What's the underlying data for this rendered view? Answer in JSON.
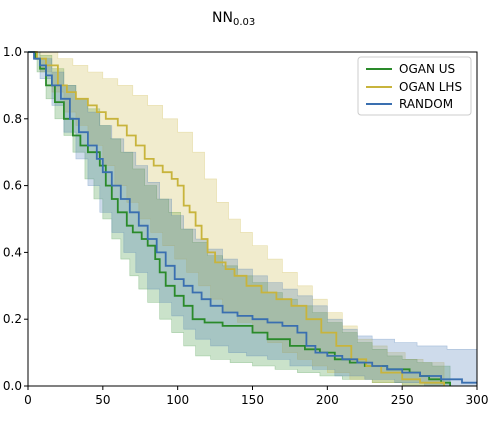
{
  "chart_data": {
    "type": "line",
    "title": "NN",
    "title_subscript": "0.03",
    "xlabel": "",
    "ylabel": "",
    "xlim": [
      0,
      300
    ],
    "ylim": [
      0,
      1.0
    ],
    "xticks": [
      0,
      50,
      100,
      150,
      200,
      250,
      300
    ],
    "yticks": [
      0.0,
      0.2,
      0.4,
      0.6,
      0.8,
      1.0
    ],
    "xtick_labels": [
      "0",
      "50",
      "100",
      "150",
      "200",
      "250",
      "300"
    ],
    "ytick_labels": [
      "0.0",
      "0.2",
      "0.4",
      "0.6",
      "0.8",
      "1.0"
    ],
    "grid": false,
    "legend_position": "top-right",
    "series": [
      {
        "name": "OGAN US",
        "color": "#2a8a2a",
        "step": [
          [
            0,
            1.0
          ],
          [
            5,
            0.98
          ],
          [
            8,
            0.95
          ],
          [
            12,
            0.9
          ],
          [
            18,
            0.85
          ],
          [
            24,
            0.8
          ],
          [
            30,
            0.75
          ],
          [
            35,
            0.72
          ],
          [
            40,
            0.7
          ],
          [
            48,
            0.66
          ],
          [
            52,
            0.6
          ],
          [
            56,
            0.56
          ],
          [
            60,
            0.52
          ],
          [
            66,
            0.48
          ],
          [
            70,
            0.46
          ],
          [
            76,
            0.44
          ],
          [
            80,
            0.42
          ],
          [
            85,
            0.38
          ],
          [
            88,
            0.34
          ],
          [
            92,
            0.3
          ],
          [
            98,
            0.27
          ],
          [
            104,
            0.24
          ],
          [
            110,
            0.2
          ],
          [
            118,
            0.19
          ],
          [
            130,
            0.18
          ],
          [
            150,
            0.16
          ],
          [
            160,
            0.14
          ],
          [
            175,
            0.12
          ],
          [
            185,
            0.11
          ],
          [
            195,
            0.1
          ],
          [
            205,
            0.08
          ],
          [
            215,
            0.07
          ],
          [
            225,
            0.06
          ],
          [
            240,
            0.05
          ],
          [
            255,
            0.04
          ],
          [
            262,
            0.03
          ],
          [
            268,
            0.02
          ],
          [
            276,
            0.01
          ],
          [
            282,
            0.0
          ]
        ],
        "band_upper": [
          [
            0,
            1.0
          ],
          [
            8,
            0.99
          ],
          [
            16,
            0.95
          ],
          [
            24,
            0.9
          ],
          [
            32,
            0.86
          ],
          [
            40,
            0.83
          ],
          [
            48,
            0.78
          ],
          [
            55,
            0.74
          ],
          [
            62,
            0.7
          ],
          [
            70,
            0.65
          ],
          [
            78,
            0.6
          ],
          [
            86,
            0.56
          ],
          [
            94,
            0.52
          ],
          [
            102,
            0.47
          ],
          [
            110,
            0.43
          ],
          [
            120,
            0.39
          ],
          [
            130,
            0.36
          ],
          [
            140,
            0.33
          ],
          [
            150,
            0.31
          ],
          [
            160,
            0.28
          ],
          [
            170,
            0.26
          ],
          [
            180,
            0.24
          ],
          [
            190,
            0.22
          ],
          [
            200,
            0.19
          ],
          [
            210,
            0.16
          ],
          [
            220,
            0.13
          ],
          [
            230,
            0.11
          ],
          [
            240,
            0.09
          ],
          [
            250,
            0.08
          ],
          [
            260,
            0.07
          ],
          [
            270,
            0.06
          ],
          [
            282,
            0.05
          ]
        ],
        "band_lower": [
          [
            0,
            1.0
          ],
          [
            6,
            0.94
          ],
          [
            12,
            0.86
          ],
          [
            18,
            0.8
          ],
          [
            24,
            0.75
          ],
          [
            30,
            0.7
          ],
          [
            38,
            0.62
          ],
          [
            44,
            0.56
          ],
          [
            50,
            0.5
          ],
          [
            56,
            0.44
          ],
          [
            62,
            0.38
          ],
          [
            68,
            0.33
          ],
          [
            74,
            0.29
          ],
          [
            80,
            0.25
          ],
          [
            88,
            0.2
          ],
          [
            96,
            0.16
          ],
          [
            104,
            0.12
          ],
          [
            112,
            0.09
          ],
          [
            122,
            0.08
          ],
          [
            135,
            0.07
          ],
          [
            150,
            0.06
          ],
          [
            165,
            0.05
          ],
          [
            180,
            0.04
          ],
          [
            195,
            0.03
          ],
          [
            210,
            0.02
          ],
          [
            230,
            0.01
          ],
          [
            250,
            0.0
          ],
          [
            282,
            0.0
          ]
        ]
      },
      {
        "name": "OGAN LHS",
        "color": "#c8b43c",
        "step": [
          [
            0,
            1.0
          ],
          [
            6,
            0.98
          ],
          [
            12,
            0.96
          ],
          [
            20,
            0.9
          ],
          [
            26,
            0.88
          ],
          [
            32,
            0.86
          ],
          [
            40,
            0.84
          ],
          [
            46,
            0.82
          ],
          [
            52,
            0.8
          ],
          [
            60,
            0.78
          ],
          [
            66,
            0.75
          ],
          [
            72,
            0.72
          ],
          [
            78,
            0.68
          ],
          [
            84,
            0.66
          ],
          [
            90,
            0.64
          ],
          [
            96,
            0.62
          ],
          [
            100,
            0.6
          ],
          [
            104,
            0.54
          ],
          [
            108,
            0.52
          ],
          [
            112,
            0.48
          ],
          [
            116,
            0.44
          ],
          [
            120,
            0.4
          ],
          [
            125,
            0.37
          ],
          [
            132,
            0.35
          ],
          [
            138,
            0.33
          ],
          [
            146,
            0.3
          ],
          [
            156,
            0.28
          ],
          [
            166,
            0.26
          ],
          [
            176,
            0.24
          ],
          [
            186,
            0.2
          ],
          [
            196,
            0.16
          ],
          [
            206,
            0.12
          ],
          [
            216,
            0.08
          ],
          [
            226,
            0.06
          ],
          [
            236,
            0.04
          ],
          [
            250,
            0.02
          ],
          [
            262,
            0.01
          ],
          [
            278,
            0.0
          ]
        ],
        "band_upper": [
          [
            0,
            1.0
          ],
          [
            10,
            1.0
          ],
          [
            20,
            0.98
          ],
          [
            30,
            0.96
          ],
          [
            40,
            0.94
          ],
          [
            50,
            0.92
          ],
          [
            60,
            0.9
          ],
          [
            70,
            0.87
          ],
          [
            80,
            0.84
          ],
          [
            90,
            0.8
          ],
          [
            100,
            0.76
          ],
          [
            110,
            0.7
          ],
          [
            118,
            0.62
          ],
          [
            126,
            0.55
          ],
          [
            134,
            0.5
          ],
          [
            142,
            0.46
          ],
          [
            150,
            0.42
          ],
          [
            160,
            0.38
          ],
          [
            170,
            0.34
          ],
          [
            180,
            0.3
          ],
          [
            190,
            0.26
          ],
          [
            200,
            0.22
          ],
          [
            210,
            0.18
          ],
          [
            220,
            0.14
          ],
          [
            230,
            0.12
          ],
          [
            240,
            0.1
          ],
          [
            252,
            0.08
          ],
          [
            264,
            0.07
          ],
          [
            278,
            0.05
          ]
        ],
        "band_lower": [
          [
            0,
            1.0
          ],
          [
            8,
            0.94
          ],
          [
            16,
            0.88
          ],
          [
            24,
            0.82
          ],
          [
            32,
            0.78
          ],
          [
            40,
            0.72
          ],
          [
            50,
            0.66
          ],
          [
            58,
            0.6
          ],
          [
            66,
            0.55
          ],
          [
            74,
            0.5
          ],
          [
            82,
            0.46
          ],
          [
            90,
            0.42
          ],
          [
            98,
            0.38
          ],
          [
            106,
            0.34
          ],
          [
            114,
            0.3
          ],
          [
            122,
            0.26
          ],
          [
            130,
            0.22
          ],
          [
            140,
            0.19
          ],
          [
            150,
            0.16
          ],
          [
            160,
            0.13
          ],
          [
            170,
            0.1
          ],
          [
            180,
            0.08
          ],
          [
            190,
            0.06
          ],
          [
            200,
            0.04
          ],
          [
            215,
            0.02
          ],
          [
            230,
            0.01
          ],
          [
            250,
            0.0
          ],
          [
            278,
            0.0
          ]
        ]
      },
      {
        "name": "RANDOM",
        "color": "#3a6fb0",
        "step": [
          [
            0,
            1.0
          ],
          [
            4,
            0.98
          ],
          [
            8,
            0.96
          ],
          [
            12,
            0.93
          ],
          [
            16,
            0.9
          ],
          [
            22,
            0.86
          ],
          [
            28,
            0.8
          ],
          [
            34,
            0.76
          ],
          [
            40,
            0.72
          ],
          [
            46,
            0.68
          ],
          [
            50,
            0.64
          ],
          [
            56,
            0.6
          ],
          [
            62,
            0.56
          ],
          [
            68,
            0.52
          ],
          [
            74,
            0.48
          ],
          [
            80,
            0.44
          ],
          [
            86,
            0.4
          ],
          [
            92,
            0.36
          ],
          [
            98,
            0.32
          ],
          [
            104,
            0.3
          ],
          [
            110,
            0.28
          ],
          [
            116,
            0.26
          ],
          [
            122,
            0.24
          ],
          [
            130,
            0.22
          ],
          [
            140,
            0.21
          ],
          [
            150,
            0.2
          ],
          [
            160,
            0.19
          ],
          [
            170,
            0.18
          ],
          [
            180,
            0.16
          ],
          [
            186,
            0.12
          ],
          [
            192,
            0.1
          ],
          [
            200,
            0.09
          ],
          [
            210,
            0.08
          ],
          [
            220,
            0.07
          ],
          [
            230,
            0.06
          ],
          [
            240,
            0.05
          ],
          [
            250,
            0.04
          ],
          [
            262,
            0.03
          ],
          [
            276,
            0.02
          ],
          [
            290,
            0.01
          ],
          [
            300,
            0.01
          ]
        ],
        "band_upper": [
          [
            0,
            1.0
          ],
          [
            8,
            0.98
          ],
          [
            16,
            0.94
          ],
          [
            24,
            0.9
          ],
          [
            32,
            0.86
          ],
          [
            40,
            0.82
          ],
          [
            48,
            0.78
          ],
          [
            56,
            0.74
          ],
          [
            64,
            0.7
          ],
          [
            72,
            0.66
          ],
          [
            80,
            0.61
          ],
          [
            88,
            0.56
          ],
          [
            96,
            0.51
          ],
          [
            104,
            0.47
          ],
          [
            112,
            0.44
          ],
          [
            120,
            0.41
          ],
          [
            130,
            0.38
          ],
          [
            140,
            0.35
          ],
          [
            150,
            0.33
          ],
          [
            160,
            0.31
          ],
          [
            170,
            0.29
          ],
          [
            180,
            0.27
          ],
          [
            190,
            0.24
          ],
          [
            200,
            0.2
          ],
          [
            210,
            0.17
          ],
          [
            220,
            0.15
          ],
          [
            230,
            0.14
          ],
          [
            245,
            0.13
          ],
          [
            260,
            0.12
          ],
          [
            280,
            0.11
          ],
          [
            300,
            0.1
          ]
        ],
        "band_lower": [
          [
            0,
            1.0
          ],
          [
            8,
            0.92
          ],
          [
            16,
            0.84
          ],
          [
            24,
            0.76
          ],
          [
            32,
            0.68
          ],
          [
            40,
            0.6
          ],
          [
            48,
            0.52
          ],
          [
            56,
            0.46
          ],
          [
            64,
            0.4
          ],
          [
            72,
            0.34
          ],
          [
            80,
            0.29
          ],
          [
            88,
            0.25
          ],
          [
            96,
            0.21
          ],
          [
            104,
            0.17
          ],
          [
            112,
            0.14
          ],
          [
            122,
            0.12
          ],
          [
            134,
            0.1
          ],
          [
            146,
            0.09
          ],
          [
            160,
            0.08
          ],
          [
            175,
            0.06
          ],
          [
            190,
            0.05
          ],
          [
            205,
            0.03
          ],
          [
            225,
            0.02
          ],
          [
            245,
            0.01
          ],
          [
            265,
            0.0
          ],
          [
            300,
            0.0
          ]
        ]
      }
    ]
  }
}
